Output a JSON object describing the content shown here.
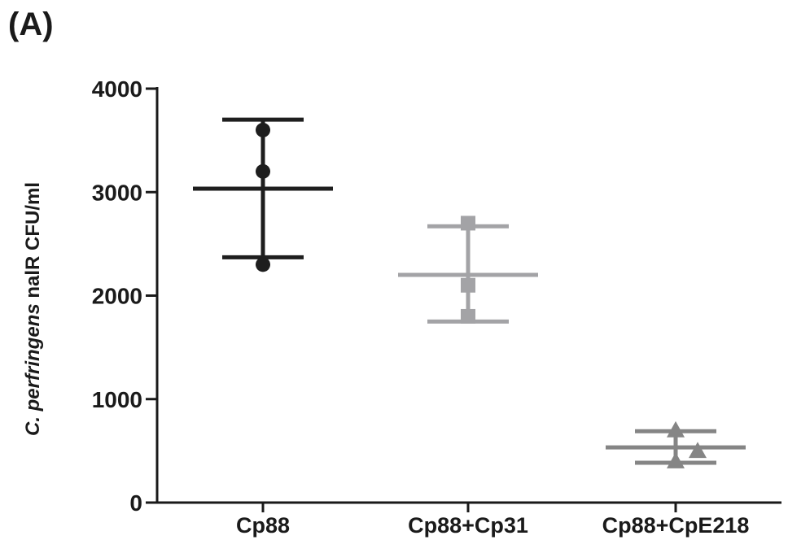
{
  "panel_label": "(A)",
  "chart_data": {
    "type": "scatter",
    "ylabel_italic": "C. perfringens",
    "ylabel_rest": " nalR CFU/ml",
    "ylim": [
      0,
      4000
    ],
    "yticks": [
      "0",
      "1000",
      "2000",
      "3000",
      "4000"
    ],
    "ytick_values": [
      0,
      1000,
      2000,
      3000,
      4000
    ],
    "categories": [
      "Cp88",
      "Cp88+Cp31",
      "Cp88+CpE218"
    ],
    "groups": [
      {
        "category": "Cp88",
        "marker": "circle",
        "color": "#1e1e1e",
        "points": [
          3600,
          3200,
          2300
        ],
        "mean": 3033,
        "sd_low": 2370,
        "sd_high": 3700
      },
      {
        "category": "Cp88+Cp31",
        "marker": "square",
        "color": "#a3a3a6",
        "points": [
          2700,
          2100,
          1800
        ],
        "mean": 2200,
        "sd_low": 1750,
        "sd_high": 2670
      },
      {
        "category": "Cp88+CpE218",
        "marker": "triangle",
        "color": "#858585",
        "points": [
          700,
          500,
          400
        ],
        "mean": 533,
        "sd_low": 385,
        "sd_high": 690
      }
    ]
  }
}
